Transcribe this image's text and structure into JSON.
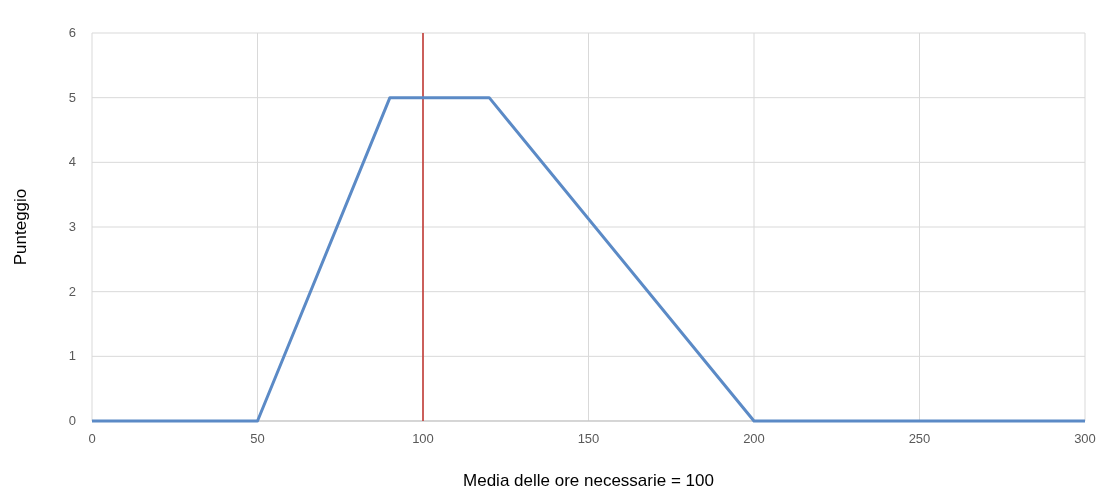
{
  "chart_data": {
    "type": "line",
    "xlabel": "Media delle ore necessarie = 100",
    "ylabel": "Punteggio",
    "x": [
      0,
      50,
      90,
      120,
      200,
      300
    ],
    "series": [
      {
        "color": "#5b8ac6",
        "values": [
          0,
          0,
          5,
          5,
          0,
          0
        ]
      }
    ],
    "xlim": [
      0,
      300
    ],
    "xticks": [
      0,
      50,
      100,
      150,
      200,
      250,
      300
    ],
    "ylim": [
      0,
      6
    ],
    "yticks": [
      0,
      1,
      2,
      3,
      4,
      5,
      6
    ],
    "grid": true,
    "marker": "none",
    "line_style": "solid",
    "ref_lines": [
      {
        "axis": "x",
        "value": 100,
        "color": "#c0302b"
      }
    ]
  }
}
